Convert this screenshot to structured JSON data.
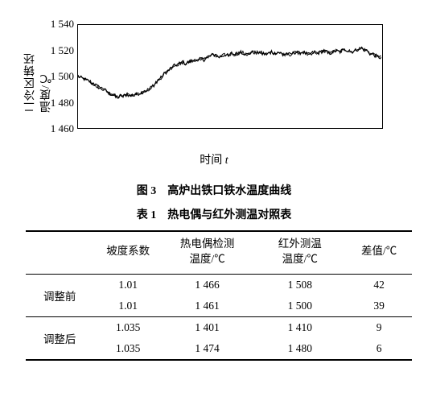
{
  "chart": {
    "type": "line",
    "ylabel": "二冷区铸坯温度/℃",
    "xlabel_prefix": "时间 ",
    "xlabel_var": "t",
    "ylim": [
      1460,
      1540
    ],
    "yticks": [
      1460,
      1480,
      1500,
      1520,
      1540
    ],
    "ytick_labels": [
      "1 460",
      "1 480",
      "1 500",
      "1 520",
      "1 540"
    ],
    "xlim": [
      0,
      100
    ],
    "line_color": "#000000",
    "line_width": 1.2,
    "border_color": "#000000",
    "background_color": "#ffffff",
    "series": [
      1500,
      1499,
      1498,
      1497,
      1496,
      1494,
      1493,
      1491,
      1490,
      1489,
      1487,
      1486,
      1485,
      1484,
      1485,
      1485,
      1486,
      1485,
      1486,
      1486,
      1487,
      1488,
      1489,
      1490,
      1492,
      1494,
      1497,
      1499,
      1502,
      1504,
      1506,
      1508,
      1509,
      1510,
      1511,
      1510,
      1511,
      1512,
      1513,
      1512,
      1514,
      1513,
      1515,
      1516,
      1517,
      1516,
      1515,
      1516,
      1517,
      1516,
      1518,
      1517,
      1518,
      1519,
      1518,
      1517,
      1518,
      1519,
      1518,
      1519,
      1518,
      1517,
      1518,
      1519,
      1518,
      1519,
      1518,
      1517,
      1518,
      1517,
      1518,
      1519,
      1518,
      1519,
      1518,
      1517,
      1518,
      1519,
      1518,
      1519,
      1520,
      1519,
      1518,
      1519,
      1520,
      1519,
      1520,
      1521,
      1520,
      1519,
      1520,
      1521,
      1522,
      1521,
      1520,
      1518,
      1517,
      1516,
      1515,
      1514
    ],
    "noise_amp": 2.8
  },
  "figure_caption": "图 3　高炉出铁口铁水温度曲线",
  "table_caption": "表 1　热电偶与红外测温对照表",
  "table": {
    "columns": [
      "",
      "坡度系数",
      "热电偶检测\n温度/℃",
      "红外测温\n温度/℃",
      "差值/℃"
    ],
    "groups": [
      {
        "label": "调整前",
        "rows": [
          [
            "1.01",
            "1 466",
            "1 508",
            "42"
          ],
          [
            "1.01",
            "1 461",
            "1 500",
            "39"
          ]
        ]
      },
      {
        "label": "调整后",
        "rows": [
          [
            "1.035",
            "1 401",
            "1 410",
            "9"
          ],
          [
            "1.035",
            "1 474",
            "1 480",
            "6"
          ]
        ]
      }
    ],
    "col_widths": [
      "18%",
      "17%",
      "24%",
      "24%",
      "17%"
    ]
  }
}
